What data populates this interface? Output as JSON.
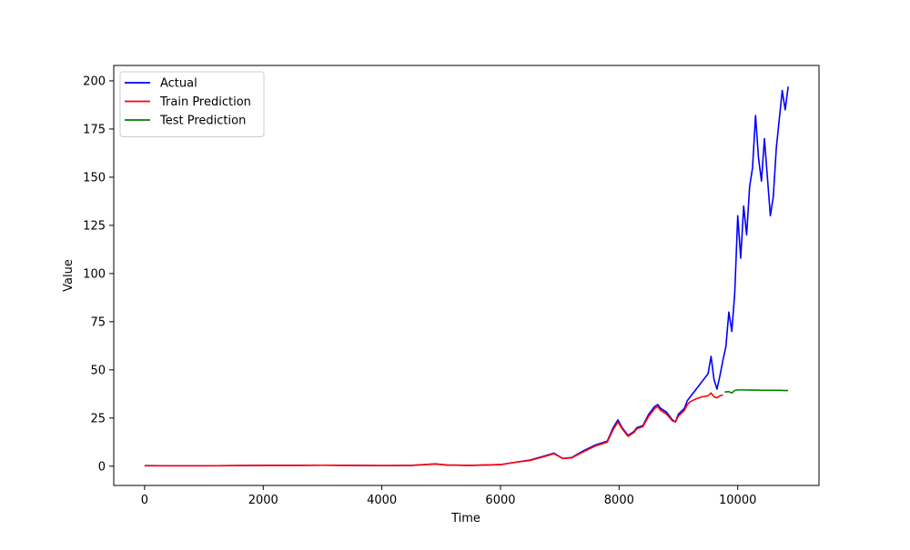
{
  "chart_data": {
    "type": "line",
    "title": "",
    "xlabel": "Time",
    "ylabel": "Value",
    "xlim": [
      -520,
      11370
    ],
    "ylim": [
      -10,
      208
    ],
    "xticks": [
      0,
      2000,
      4000,
      6000,
      8000,
      10000
    ],
    "yticks": [
      0,
      25,
      50,
      75,
      100,
      125,
      150,
      175,
      200
    ],
    "legend_position": "upper-left",
    "grid": false,
    "series": [
      {
        "name": "Actual",
        "color": "#0000ff",
        "x": [
          0,
          500,
          1000,
          1500,
          2000,
          2500,
          3000,
          3500,
          4000,
          4500,
          4900,
          5100,
          5500,
          6000,
          6200,
          6500,
          6800,
          6900,
          7050,
          7200,
          7400,
          7600,
          7800,
          7900,
          7980,
          8050,
          8150,
          8250,
          8300,
          8400,
          8500,
          8600,
          8650,
          8700,
          8800,
          8900,
          8950,
          9000,
          9100,
          9150,
          9200,
          9300,
          9400,
          9500,
          9550,
          9600,
          9650,
          9700,
          9750,
          9800,
          9850,
          9900,
          9950,
          10000,
          10050,
          10100,
          10150,
          10200,
          10250,
          10300,
          10350,
          10400,
          10450,
          10500,
          10550,
          10600,
          10650,
          10700,
          10750,
          10800,
          10850
        ],
        "y": [
          0.3,
          0.2,
          0.2,
          0.3,
          0.4,
          0.4,
          0.5,
          0.4,
          0.3,
          0.4,
          1.2,
          0.6,
          0.4,
          0.8,
          1.8,
          3.2,
          5.8,
          6.8,
          4.0,
          4.5,
          8.0,
          11.0,
          13.0,
          20.0,
          24.0,
          20.0,
          16.0,
          18.0,
          20.0,
          21.0,
          27.0,
          31.0,
          32.0,
          30.0,
          28.0,
          24.0,
          23.0,
          27.0,
          30.0,
          34.0,
          36.0,
          40.0,
          44.0,
          48.0,
          57.0,
          45.0,
          40.0,
          47.0,
          55.0,
          62.0,
          80.0,
          70.0,
          90.0,
          130.0,
          108.0,
          135.0,
          120.0,
          145.0,
          155.0,
          182.0,
          160.0,
          148.0,
          170.0,
          150.0,
          130.0,
          140.0,
          165.0,
          180.0,
          195.0,
          185.0,
          197.0
        ]
      },
      {
        "name": "Train Prediction",
        "color": "#ff0000",
        "x": [
          0,
          500,
          1000,
          1500,
          2000,
          2500,
          3000,
          3500,
          4000,
          4500,
          4900,
          5100,
          5500,
          6000,
          6200,
          6500,
          6800,
          6900,
          7050,
          7200,
          7400,
          7600,
          7800,
          7900,
          7980,
          8050,
          8150,
          8250,
          8300,
          8400,
          8500,
          8600,
          8650,
          8700,
          8800,
          8900,
          8950,
          9000,
          9100,
          9150,
          9200,
          9300,
          9400,
          9500,
          9550,
          9600,
          9650,
          9700,
          9750
        ],
        "y": [
          0.2,
          0.2,
          0.2,
          0.3,
          0.4,
          0.4,
          0.5,
          0.4,
          0.3,
          0.4,
          1.1,
          0.6,
          0.4,
          0.8,
          1.8,
          3.0,
          5.5,
          6.5,
          4.0,
          4.3,
          7.5,
          10.5,
          12.5,
          19.0,
          23.0,
          19.5,
          15.5,
          17.5,
          19.5,
          20.5,
          26.0,
          30.0,
          31.0,
          29.0,
          27.0,
          23.5,
          23.0,
          26.0,
          29.0,
          32.0,
          33.5,
          35.0,
          36.0,
          36.5,
          38.0,
          36.0,
          35.5,
          36.5,
          37.0
        ]
      },
      {
        "name": "Test Prediction",
        "color": "#008000",
        "x": [
          9780,
          9850,
          9900,
          9950,
          10000,
          10100,
          10200,
          10300,
          10400,
          10500,
          10600,
          10700,
          10800,
          10850
        ],
        "y": [
          38.5,
          38.7,
          38.0,
          39.3,
          39.6,
          39.6,
          39.5,
          39.5,
          39.4,
          39.4,
          39.4,
          39.4,
          39.3,
          39.3
        ]
      }
    ]
  }
}
